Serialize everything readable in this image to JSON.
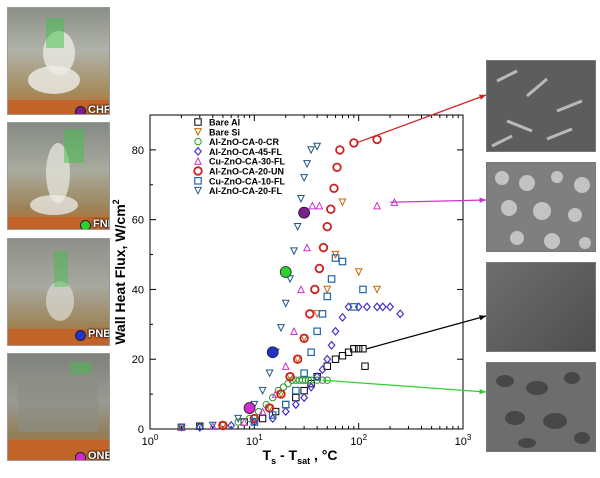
{
  "photos": [
    {
      "label": "CHF",
      "color": "#7a1f8c"
    },
    {
      "label": "FNB",
      "color": "#2fd12f"
    },
    {
      "label": "PNB",
      "color": "#2233cc"
    },
    {
      "label": "ONB",
      "color": "#d42ad4"
    }
  ],
  "chart_data": {
    "type": "scatter",
    "xlabel": "T",
    "xlabel_sub1": "s",
    "xlabel_mid": " - T",
    "xlabel_sub2": "sat",
    "xlabel_unit": " , °C",
    "ylabel": "Wall Heat Flux, W/cm",
    "ylabel_sup": "2",
    "x_scale": "log",
    "xlim": [
      1,
      1000
    ],
    "ylim": [
      0,
      90
    ],
    "x_ticks": [
      "10",
      "10",
      "10",
      "10"
    ],
    "x_tick_exps": [
      "0",
      "1",
      "2",
      "3"
    ],
    "y_ticks": [
      "0",
      "20",
      "40",
      "60",
      "80"
    ],
    "legend_position": "top-left",
    "series": [
      {
        "name": "Bare Al",
        "marker": "square",
        "color": "#000000",
        "points": [
          [
            2,
            0.5
          ],
          [
            3,
            0.8
          ],
          [
            5,
            1
          ],
          [
            8,
            2
          ],
          [
            12,
            3
          ],
          [
            16,
            5
          ],
          [
            20,
            7
          ],
          [
            25,
            9
          ],
          [
            30,
            11
          ],
          [
            35,
            13
          ],
          [
            40,
            15
          ],
          [
            50,
            18
          ],
          [
            60,
            20
          ],
          [
            70,
            21
          ],
          [
            80,
            22
          ],
          [
            90,
            23
          ],
          [
            100,
            23
          ],
          [
            110,
            23
          ],
          [
            115,
            18
          ]
        ]
      },
      {
        "name": "Bare Si",
        "marker": "triangle-down",
        "color": "#cc6600",
        "points": [
          [
            2,
            0.5
          ],
          [
            5,
            1
          ],
          [
            10,
            3
          ],
          [
            14,
            6
          ],
          [
            18,
            10
          ],
          [
            22,
            15
          ],
          [
            26,
            20
          ],
          [
            30,
            26
          ],
          [
            40,
            33
          ],
          [
            50,
            40
          ],
          [
            60,
            50
          ],
          [
            70,
            65
          ],
          [
            100,
            45
          ],
          [
            150,
            40
          ]
        ]
      },
      {
        "name": "Al-ZnO-CA-0-CR",
        "marker": "circle",
        "color": "#2a9a2a",
        "points": [
          [
            2,
            0.5
          ],
          [
            3,
            0.6
          ],
          [
            5,
            1
          ],
          [
            7,
            2
          ],
          [
            9,
            3
          ],
          [
            11,
            5
          ],
          [
            13,
            7
          ],
          [
            15,
            9
          ],
          [
            17,
            11
          ],
          [
            19,
            12
          ],
          [
            21,
            13
          ],
          [
            23,
            14
          ],
          [
            25,
            14
          ],
          [
            27,
            14
          ],
          [
            29,
            14
          ],
          [
            31,
            14
          ],
          [
            33,
            14
          ],
          [
            35,
            14
          ],
          [
            40,
            14
          ],
          [
            45,
            14
          ],
          [
            50,
            14
          ]
        ]
      },
      {
        "name": "Al-ZnO-CA-45-FL",
        "marker": "diamond",
        "color": "#4433cc",
        "points": [
          [
            3,
            0.5
          ],
          [
            6,
            1
          ],
          [
            10,
            2
          ],
          [
            15,
            3
          ],
          [
            20,
            5
          ],
          [
            25,
            7
          ],
          [
            30,
            9
          ],
          [
            35,
            12
          ],
          [
            40,
            15
          ],
          [
            45,
            17
          ],
          [
            50,
            20
          ],
          [
            55,
            24
          ],
          [
            60,
            28
          ],
          [
            70,
            32
          ],
          [
            80,
            35
          ],
          [
            100,
            35
          ],
          [
            120,
            35
          ],
          [
            150,
            35
          ],
          [
            170,
            35
          ],
          [
            200,
            35
          ],
          [
            250,
            33
          ]
        ]
      },
      {
        "name": "Cu-ZnO-CA-30-FL",
        "marker": "triangle-up",
        "color": "#cc33cc",
        "points": [
          [
            2,
            0.5
          ],
          [
            4,
            0.8
          ],
          [
            8,
            2
          ],
          [
            12,
            5
          ],
          [
            16,
            10
          ],
          [
            20,
            18
          ],
          [
            24,
            28
          ],
          [
            28,
            40
          ],
          [
            32,
            52
          ],
          [
            36,
            64
          ],
          [
            42,
            64
          ],
          [
            150,
            64
          ],
          [
            220,
            65
          ]
        ]
      },
      {
        "name": "Al-ZnO-CA-20-UN",
        "marker": "circle-thick",
        "color": "#cc2222",
        "points": [
          [
            5,
            1
          ],
          [
            10,
            3
          ],
          [
            14,
            6
          ],
          [
            18,
            10
          ],
          [
            22,
            15
          ],
          [
            26,
            20
          ],
          [
            30,
            26
          ],
          [
            34,
            33
          ],
          [
            38,
            40
          ],
          [
            42,
            46
          ],
          [
            46,
            52
          ],
          [
            50,
            58
          ],
          [
            54,
            63
          ],
          [
            58,
            69
          ],
          [
            62,
            75
          ],
          [
            66,
            80
          ],
          [
            90,
            82
          ],
          [
            150,
            83
          ]
        ]
      },
      {
        "name": "Cu-ZnO-CA-10-FL",
        "marker": "square-open",
        "color": "#2266aa",
        "points": [
          [
            10,
            2
          ],
          [
            15,
            4
          ],
          [
            20,
            7
          ],
          [
            25,
            11
          ],
          [
            30,
            16
          ],
          [
            35,
            22
          ],
          [
            40,
            28
          ],
          [
            45,
            33
          ],
          [
            50,
            38
          ],
          [
            55,
            43
          ],
          [
            60,
            49
          ],
          [
            70,
            48
          ],
          [
            90,
            35
          ],
          [
            110,
            40
          ]
        ]
      },
      {
        "name": "Al-ZnO-CA-20-FL",
        "marker": "triangle-down-open",
        "color": "#225588",
        "points": [
          [
            2,
            0.5
          ],
          [
            4,
            1
          ],
          [
            7,
            3
          ],
          [
            10,
            7
          ],
          [
            12,
            11
          ],
          [
            14,
            16
          ],
          [
            16,
            22
          ],
          [
            18,
            29
          ],
          [
            20,
            36
          ],
          [
            22,
            43
          ],
          [
            24,
            51
          ],
          [
            26,
            58
          ],
          [
            28,
            66
          ],
          [
            30,
            72
          ],
          [
            32,
            76
          ],
          [
            35,
            80
          ],
          [
            40,
            81
          ]
        ]
      }
    ],
    "regime_points": [
      {
        "label": "CHF",
        "x": 30,
        "y": 62,
        "color": "#7a1f8c"
      },
      {
        "label": "FNB",
        "x": 20,
        "y": 45,
        "color": "#2fd12f"
      },
      {
        "label": "PNB",
        "x": 15,
        "y": 22,
        "color": "#2233cc"
      },
      {
        "label": "ONB",
        "x": 9,
        "y": 6,
        "color": "#d42ad4"
      }
    ],
    "callouts": [
      {
        "from": [
          95,
          82
        ],
        "color": "#cc2222",
        "target": "sem-0"
      },
      {
        "from": [
          200,
          65
        ],
        "color": "#cc33cc",
        "target": "sem-1"
      },
      {
        "from": [
          120,
          23
        ],
        "color": "#000000",
        "target": "sem-2"
      },
      {
        "from": [
          45,
          14
        ],
        "color": "#2fd12f",
        "target": "sem-3"
      }
    ]
  }
}
